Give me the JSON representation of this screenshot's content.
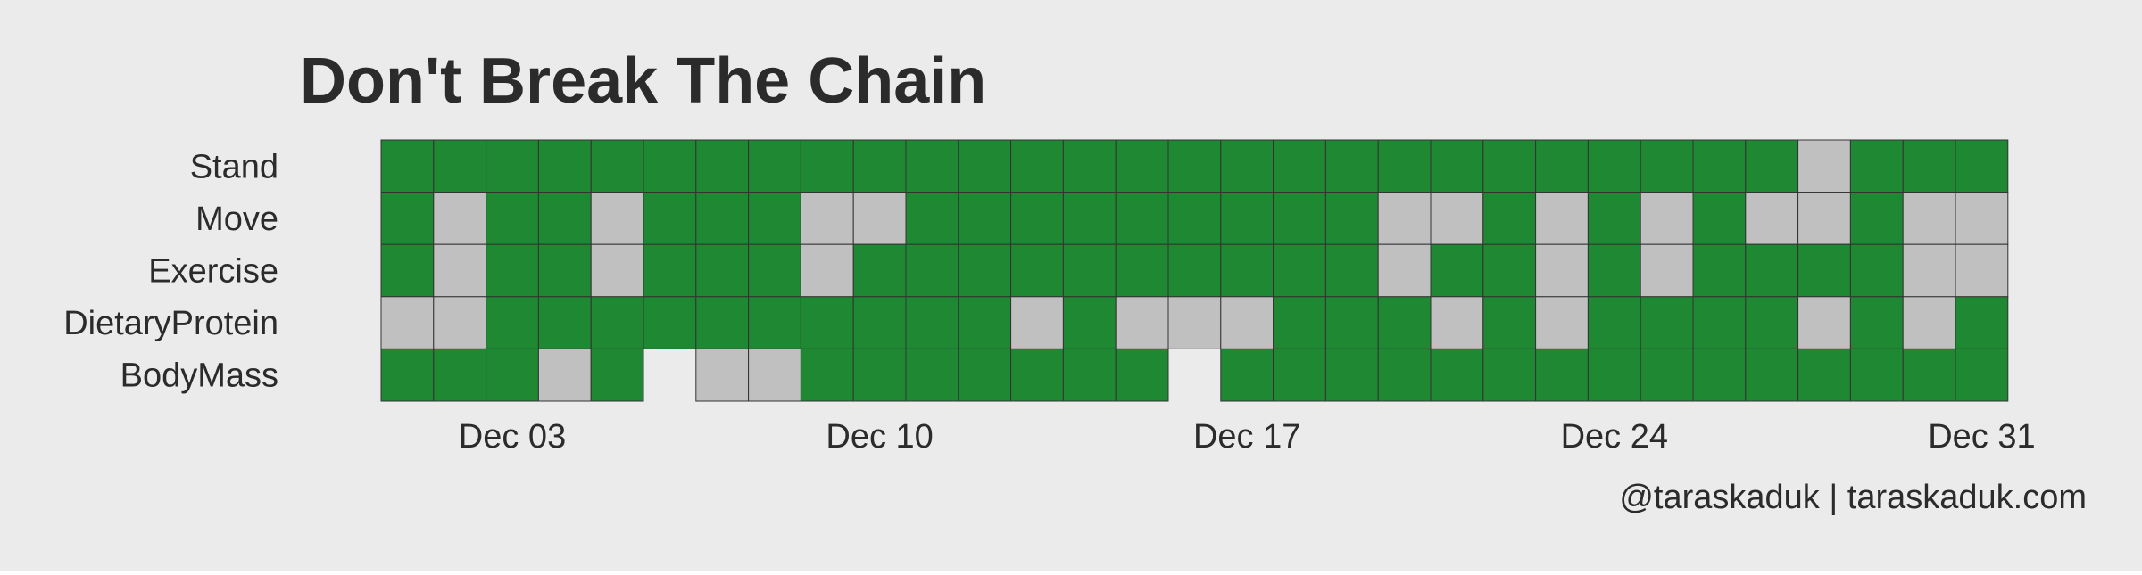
{
  "colors": {
    "background": "#ebebeb",
    "complete": "#1e8833",
    "incomplete": "#c0c0c0",
    "border": "#333333",
    "text": "#2b2b2b"
  },
  "chart_data": {
    "type": "heatmap",
    "title": "Don't Break The Chain",
    "caption": "@taraskaduk | taraskaduk.com",
    "xlabel": "",
    "ylabel": "",
    "x_range": [
      "2017-12-01",
      "2017-12-31"
    ],
    "x_ticks": [
      "Dec 03",
      "Dec 10",
      "Dec 17",
      "Dec 24",
      "Dec 31"
    ],
    "legend": "none",
    "grid": false,
    "cell_values": "1 = goal met (green), 0 = goal not met (grey), null = no data",
    "rows": [
      {
        "name": "Stand",
        "values": [
          1,
          1,
          1,
          1,
          1,
          1,
          1,
          1,
          1,
          1,
          1,
          1,
          1,
          1,
          1,
          1,
          1,
          1,
          1,
          1,
          1,
          1,
          1,
          1,
          1,
          1,
          1,
          0,
          1,
          1,
          1
        ]
      },
      {
        "name": "Move",
        "values": [
          1,
          0,
          1,
          1,
          0,
          1,
          1,
          1,
          0,
          0,
          1,
          1,
          1,
          1,
          1,
          1,
          1,
          1,
          1,
          0,
          0,
          1,
          0,
          1,
          0,
          1,
          0,
          0,
          1,
          0,
          0
        ]
      },
      {
        "name": "Exercise",
        "values": [
          1,
          0,
          1,
          1,
          0,
          1,
          1,
          1,
          0,
          1,
          1,
          1,
          1,
          1,
          1,
          1,
          1,
          1,
          1,
          0,
          1,
          1,
          0,
          1,
          0,
          1,
          1,
          1,
          1,
          0,
          0
        ]
      },
      {
        "name": "DietaryProtein",
        "values": [
          0,
          0,
          1,
          1,
          1,
          1,
          1,
          1,
          1,
          1,
          1,
          1,
          0,
          1,
          0,
          0,
          0,
          1,
          1,
          1,
          0,
          1,
          0,
          1,
          1,
          1,
          1,
          0,
          1,
          0,
          1
        ]
      },
      {
        "name": "BodyMass",
        "values": [
          1,
          1,
          1,
          0,
          1,
          null,
          0,
          0,
          1,
          1,
          1,
          1,
          1,
          1,
          1,
          null,
          1,
          1,
          1,
          1,
          1,
          1,
          1,
          1,
          1,
          1,
          1,
          1,
          1,
          1,
          1
        ]
      }
    ]
  }
}
